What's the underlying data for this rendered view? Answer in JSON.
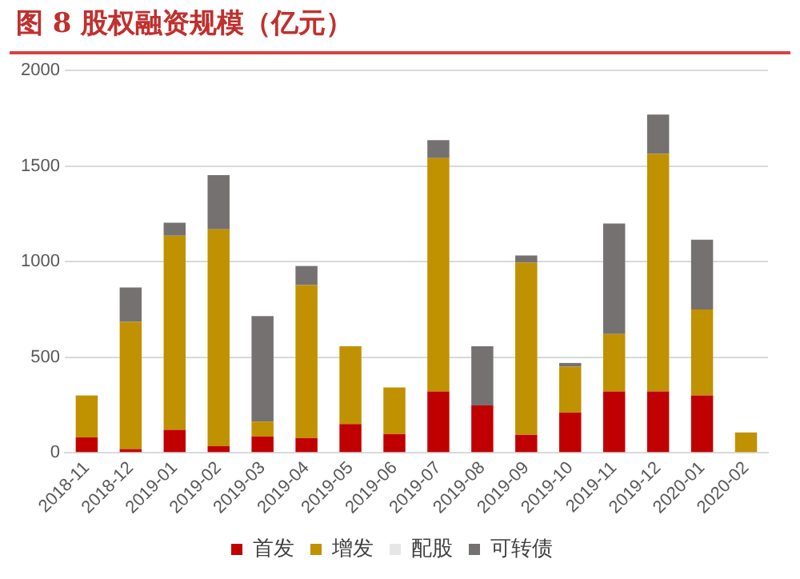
{
  "chart_data": {
    "type": "bar",
    "title": "图 8  股权融资规模（亿元）",
    "stacked": true,
    "categories": [
      "2018-11",
      "2018-12",
      "2019-01",
      "2019-02",
      "2019-03",
      "2019-04",
      "2019-05",
      "2019-06",
      "2019-07",
      "2019-08",
      "2019-09",
      "2019-10",
      "2019-11",
      "2019-12",
      "2020-01",
      "2020-02"
    ],
    "series": [
      {
        "name": "首发",
        "color": "#c00000",
        "values": [
          80,
          20,
          120,
          34,
          86,
          77,
          150,
          98,
          321,
          248,
          94,
          210,
          321,
          321,
          300,
          0
        ]
      },
      {
        "name": "增发",
        "color": "#c09100",
        "values": [
          220,
          665,
          1015,
          1135,
          77,
          800,
          407,
          244,
          1220,
          0,
          900,
          240,
          300,
          1242,
          450,
          107
        ]
      },
      {
        "name": "配股",
        "color": "#e7e6e6",
        "values": [
          0,
          0,
          0,
          0,
          0,
          0,
          0,
          0,
          0,
          0,
          0,
          0,
          0,
          0,
          0,
          0
        ]
      },
      {
        "name": "可转债",
        "color": "#767171",
        "values": [
          0,
          180,
          68,
          283,
          552,
          100,
          0,
          0,
          94,
          309,
          38,
          20,
          578,
          206,
          364,
          0
        ]
      }
    ],
    "ylim": [
      0,
      2000
    ],
    "yticks": [
      0,
      500,
      1000,
      1500,
      2000
    ],
    "grid": "y",
    "legend": "bottom"
  }
}
